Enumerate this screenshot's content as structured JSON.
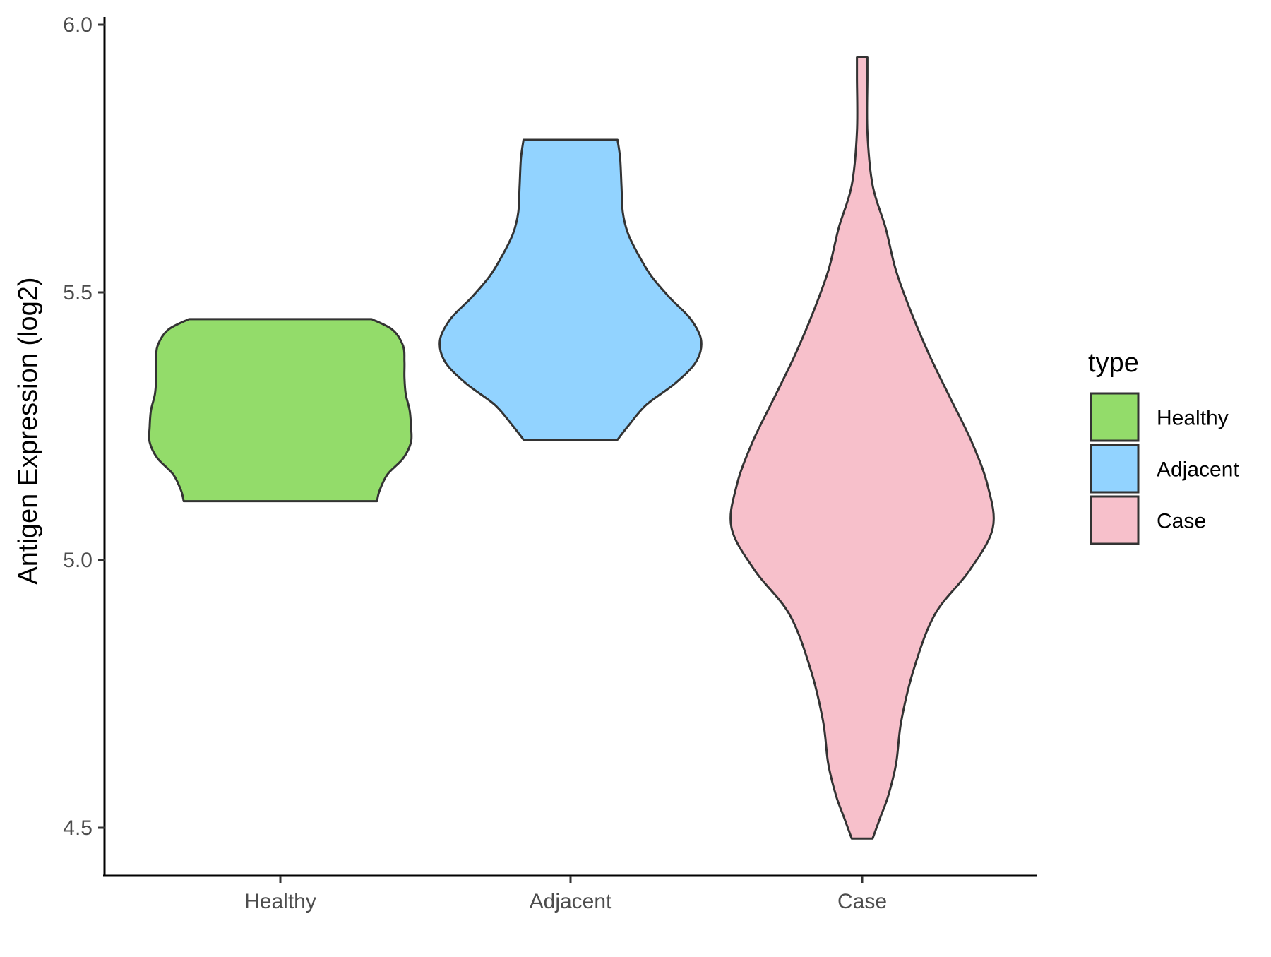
{
  "chart_data": {
    "type": "violin",
    "ylabel": "Antigen Expression (log2)",
    "xlabel": "",
    "ylim": [
      4.45,
      6.02
    ],
    "yticks": [
      4.5,
      5.0,
      5.5,
      6.0
    ],
    "ytick_labels": [
      "4.5",
      "5.0",
      "5.5",
      "6.0"
    ],
    "categories": [
      "Healthy",
      "Adjacent",
      "Case"
    ],
    "legend": {
      "title": "type",
      "position": "right",
      "entries": [
        "Healthy",
        "Adjacent",
        "Case"
      ]
    },
    "series": [
      {
        "name": "Healthy",
        "color": "#93DC6A",
        "min": 5.11,
        "max": 5.45,
        "density": [
          [
            5.11,
            0.74
          ],
          [
            5.13,
            0.76
          ],
          [
            5.16,
            0.82
          ],
          [
            5.19,
            0.94
          ],
          [
            5.22,
            1.0
          ],
          [
            5.25,
            1.0
          ],
          [
            5.28,
            0.99
          ],
          [
            5.31,
            0.96
          ],
          [
            5.34,
            0.95
          ],
          [
            5.37,
            0.95
          ],
          [
            5.4,
            0.94
          ],
          [
            5.43,
            0.86
          ],
          [
            5.45,
            0.7
          ]
        ]
      },
      {
        "name": "Adjacent",
        "color": "#92D3FF",
        "min": 5.225,
        "max": 5.785,
        "density": [
          [
            5.225,
            0.36
          ],
          [
            5.25,
            0.44
          ],
          [
            5.29,
            0.58
          ],
          [
            5.33,
            0.8
          ],
          [
            5.37,
            0.96
          ],
          [
            5.41,
            1.0
          ],
          [
            5.45,
            0.92
          ],
          [
            5.49,
            0.76
          ],
          [
            5.53,
            0.62
          ],
          [
            5.57,
            0.52
          ],
          [
            5.61,
            0.44
          ],
          [
            5.65,
            0.4
          ],
          [
            5.7,
            0.39
          ],
          [
            5.75,
            0.38
          ],
          [
            5.785,
            0.36
          ]
        ]
      },
      {
        "name": "Case",
        "color": "#F7C0CB",
        "min": 4.48,
        "max": 5.94,
        "density": [
          [
            4.48,
            0.08
          ],
          [
            4.52,
            0.14
          ],
          [
            4.56,
            0.2
          ],
          [
            4.62,
            0.26
          ],
          [
            4.7,
            0.3
          ],
          [
            4.8,
            0.4
          ],
          [
            4.9,
            0.56
          ],
          [
            4.98,
            0.82
          ],
          [
            5.06,
            1.0
          ],
          [
            5.14,
            0.96
          ],
          [
            5.22,
            0.84
          ],
          [
            5.3,
            0.68
          ],
          [
            5.38,
            0.52
          ],
          [
            5.46,
            0.38
          ],
          [
            5.54,
            0.26
          ],
          [
            5.62,
            0.18
          ],
          [
            5.7,
            0.08
          ],
          [
            5.8,
            0.04
          ],
          [
            5.9,
            0.04
          ],
          [
            5.94,
            0.04
          ]
        ]
      }
    ]
  }
}
